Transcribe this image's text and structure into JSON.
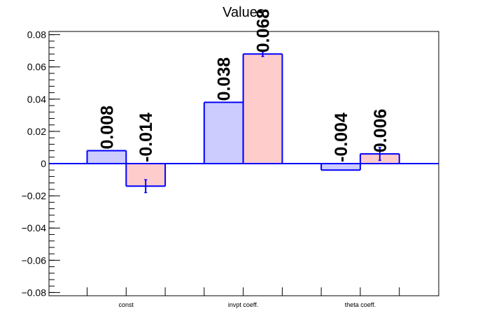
{
  "chart_data": {
    "type": "bar",
    "title": "Values",
    "xlabel": "",
    "ylabel": "",
    "ylim": [
      -0.082,
      0.082
    ],
    "grid": false,
    "legend": "none",
    "categories": [
      "const",
      "invpt coeff.",
      "theta coeff."
    ],
    "y_ticks": [
      {
        "value": 0.08,
        "label": "0.08"
      },
      {
        "value": 0.06,
        "label": "0.06"
      },
      {
        "value": 0.04,
        "label": "0.04"
      },
      {
        "value": 0.02,
        "label": "0.02"
      },
      {
        "value": 0.0,
        "label": "0"
      },
      {
        "value": -0.02,
        "label": "−0.02"
      },
      {
        "value": -0.04,
        "label": "−0.04"
      },
      {
        "value": -0.06,
        "label": "−0.06"
      },
      {
        "value": -0.08,
        "label": "−0.08"
      }
    ],
    "series": [
      {
        "color": "#ccccff",
        "values": [
          0.008,
          0.038,
          -0.004
        ],
        "errors": [
          0.0,
          0.0,
          0.0
        ],
        "labels": [
          "0.008",
          "0.038",
          "-0.004"
        ]
      },
      {
        "color": "#ffcccc",
        "values": [
          -0.014,
          0.068,
          0.006
        ],
        "errors": [
          0.004,
          0.0015,
          0.004
        ],
        "labels": [
          "-0.014",
          "0.068",
          "0.006"
        ]
      }
    ],
    "edge_color": "#0000ff"
  }
}
